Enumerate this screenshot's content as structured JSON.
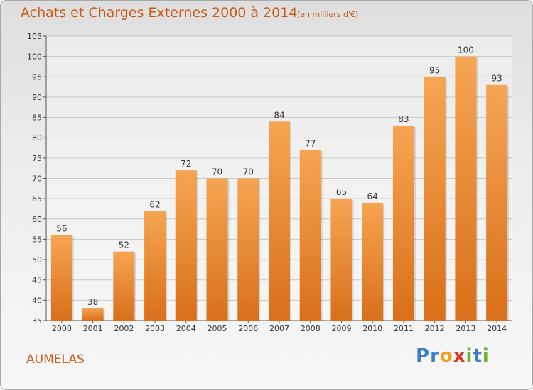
{
  "title": "Achats et Charges Externes 2000 à 2014",
  "subtitle": "(en milliers d'€)",
  "location": "AUMELAS",
  "brand": {
    "letters": [
      "P",
      "r",
      "o",
      "x",
      "i",
      "t",
      "i"
    ],
    "colors": [
      "#3a7fc8",
      "#3a7fc8",
      "#f0a020",
      "#e03020",
      "#70b030",
      "#3a7fc8",
      "#70b030"
    ]
  },
  "colors": {
    "accent": "#c85a14",
    "bar_top": "#f6a552",
    "bar_bottom": "#d96f1a",
    "grid": "#c8c8c8"
  },
  "chart_data": {
    "type": "bar",
    "categories": [
      "2000",
      "2001",
      "2002",
      "2003",
      "2004",
      "2005",
      "2006",
      "2007",
      "2008",
      "2009",
      "2010",
      "2011",
      "2012",
      "2013",
      "2014"
    ],
    "values": [
      56,
      38,
      52,
      62,
      72,
      70,
      70,
      84,
      77,
      65,
      64,
      83,
      95,
      100,
      93
    ],
    "ylim": [
      35,
      105
    ],
    "yticks": [
      35,
      40,
      45,
      50,
      55,
      60,
      65,
      70,
      75,
      80,
      85,
      90,
      95,
      100,
      105
    ],
    "grid": true,
    "xlabel": "",
    "ylabel": ""
  }
}
